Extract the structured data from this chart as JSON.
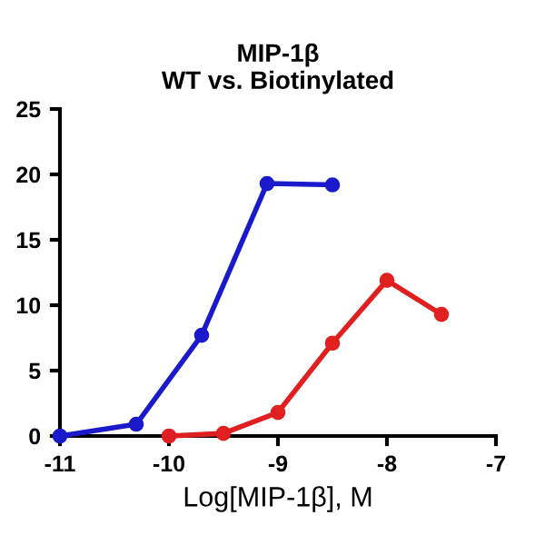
{
  "chart_data": {
    "type": "line",
    "title": "MIP-1β\nWT vs. Biotinylated",
    "xlabel": "Log[MIP-1β], M",
    "series": [
      {
        "color": "#1a1acc",
        "x": [
          -11,
          -10.3,
          -9.7,
          -9.1,
          -8.5
        ],
        "values": [
          0,
          0.9,
          7.7,
          19.3,
          19.2
        ]
      },
      {
        "color": "#e02020",
        "x": [
          -10,
          -9.5,
          -9,
          -8.5,
          -8,
          -7.5
        ],
        "values": [
          0,
          0.2,
          1.8,
          7.1,
          11.9,
          9.3
        ]
      }
    ],
    "xlim": [
      -11,
      -7
    ],
    "xticks": [
      -11,
      -10,
      -9,
      -8,
      -7
    ],
    "ylim": [
      0,
      25
    ],
    "yticks": [
      0,
      5,
      10,
      15,
      20,
      25
    ],
    "grid": false,
    "legend": false,
    "marker": "circle",
    "line_style": "solid"
  }
}
